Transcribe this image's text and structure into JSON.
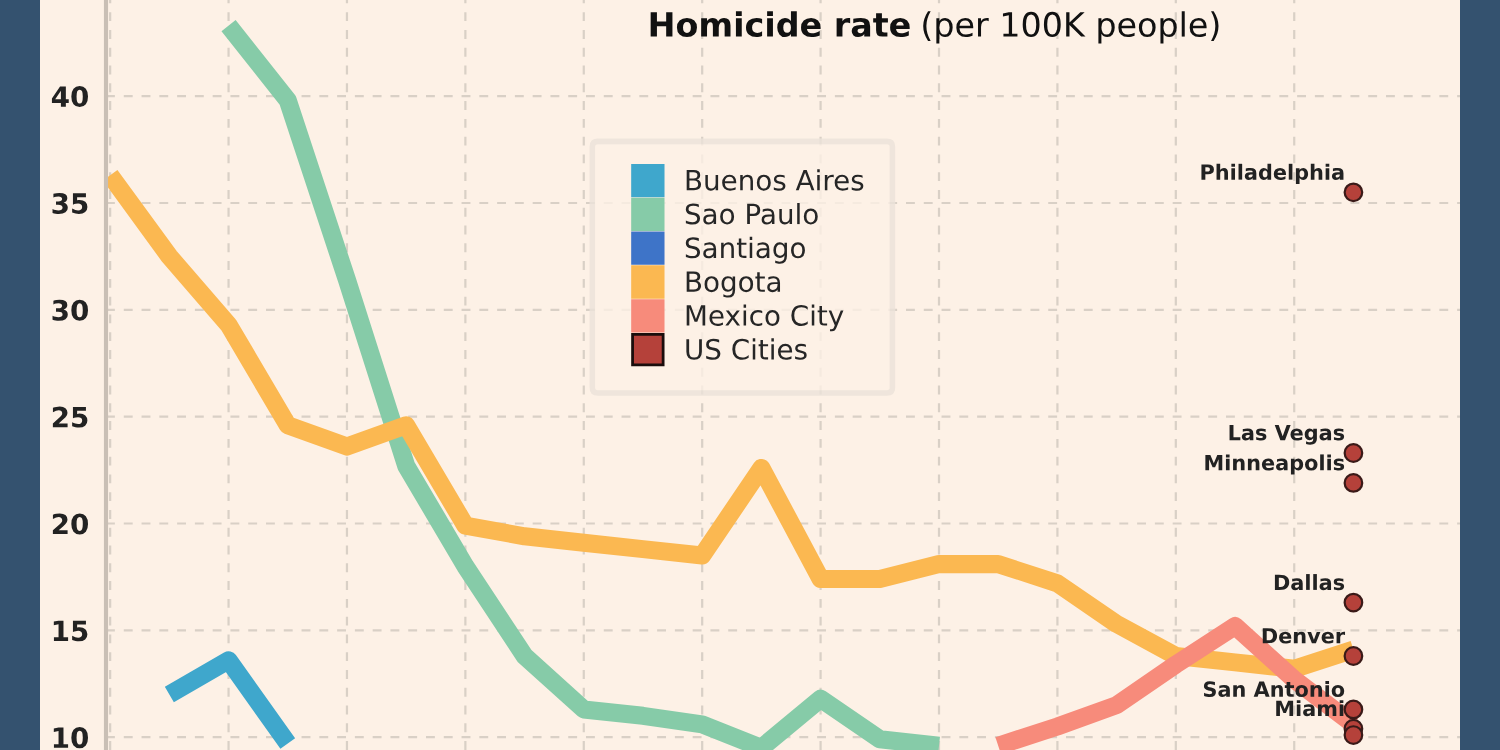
{
  "chart_data": {
    "type": "line",
    "title": "Homicide rate",
    "subtitle": "(per 100K people)",
    "categories": [
      null,
      null,
      null,
      null,
      null,
      null,
      null,
      null,
      null,
      null,
      null,
      null,
      null,
      null,
      null,
      null,
      null,
      null,
      null,
      null,
      null,
      null
    ],
    "series": [
      {
        "name": "Buenos Aires",
        "color": "#3fa7cc",
        "values": [
          null,
          12.0,
          13.6,
          9.7,
          null,
          null,
          null,
          null,
          null,
          null,
          null,
          null,
          null,
          null,
          null,
          null,
          null,
          null,
          null,
          null,
          null,
          null
        ]
      },
      {
        "name": "Sao Paulo",
        "color": "#86cba8",
        "values": [
          null,
          null,
          43.3,
          39.8,
          31.4,
          22.7,
          18.0,
          13.8,
          11.3,
          11.0,
          10.6,
          9.5,
          11.8,
          9.9,
          9.6,
          null,
          null,
          null,
          null,
          null,
          null,
          null
        ]
      },
      {
        "name": "Santiago",
        "color": "#3e74c8",
        "values": [
          null,
          null,
          null,
          null,
          null,
          null,
          null,
          null,
          null,
          null,
          null,
          null,
          null,
          null,
          null,
          null,
          null,
          null,
          null,
          null,
          null,
          null
        ]
      },
      {
        "name": "Bogota",
        "color": "#fbb851",
        "values": [
          36.3,
          32.5,
          29.3,
          24.6,
          23.6,
          24.6,
          19.9,
          19.4,
          19.1,
          18.8,
          18.5,
          22.6,
          17.4,
          17.4,
          18.1,
          18.1,
          17.2,
          15.3,
          13.8,
          13.5,
          13.2,
          14.1
        ]
      },
      {
        "name": "Mexico City",
        "color": "#f78b7b",
        "values": [
          null,
          null,
          null,
          null,
          null,
          null,
          null,
          null,
          null,
          null,
          null,
          null,
          null,
          null,
          null,
          9.6,
          10.5,
          11.5,
          13.4,
          15.2,
          12.7,
          10.6
        ]
      },
      {
        "name": "US Cities",
        "type": "scatter",
        "marker": "circle",
        "color": "#b5413a",
        "values": [
          null,
          null,
          null,
          null,
          null,
          null,
          null,
          null,
          null,
          null,
          null,
          null,
          null,
          null,
          null,
          null,
          null,
          null,
          null,
          null,
          null,
          35.5
        ]
      },
      {
        "type": "scatter",
        "color": "#b5413a",
        "marker": "circle",
        "values": [
          null,
          null,
          null,
          null,
          null,
          null,
          null,
          null,
          null,
          null,
          null,
          null,
          null,
          null,
          null,
          null,
          null,
          null,
          null,
          null,
          null,
          23.3
        ]
      },
      {
        "type": "scatter",
        "color": "#b5413a",
        "marker": "circle",
        "values": [
          null,
          null,
          null,
          null,
          null,
          null,
          null,
          null,
          null,
          null,
          null,
          null,
          null,
          null,
          null,
          null,
          null,
          null,
          null,
          null,
          null,
          21.9
        ]
      },
      {
        "type": "scatter",
        "color": "#b5413a",
        "marker": "circle",
        "values": [
          null,
          null,
          null,
          null,
          null,
          null,
          null,
          null,
          null,
          null,
          null,
          null,
          null,
          null,
          null,
          null,
          null,
          null,
          null,
          null,
          null,
          16.3
        ]
      },
      {
        "type": "scatter",
        "color": "#b5413a",
        "marker": "circle",
        "values": [
          null,
          null,
          null,
          null,
          null,
          null,
          null,
          null,
          null,
          null,
          null,
          null,
          null,
          null,
          null,
          null,
          null,
          null,
          null,
          null,
          null,
          13.8
        ]
      },
      {
        "type": "scatter",
        "color": "#b5413a",
        "marker": "circle",
        "values": [
          null,
          null,
          null,
          null,
          null,
          null,
          null,
          null,
          null,
          null,
          null,
          null,
          null,
          null,
          null,
          null,
          null,
          null,
          null,
          null,
          null,
          11.3
        ]
      },
      {
        "type": "scatter",
        "color": "#b5413a",
        "marker": "circle",
        "values": [
          null,
          null,
          null,
          null,
          null,
          null,
          null,
          null,
          null,
          null,
          null,
          null,
          null,
          null,
          null,
          null,
          null,
          null,
          null,
          null,
          null,
          10.4
        ]
      },
      {
        "type": "scatter",
        "color": "#b5413a",
        "marker": "circle",
        "values": [
          null,
          null,
          null,
          null,
          null,
          null,
          null,
          null,
          null,
          null,
          null,
          null,
          null,
          null,
          null,
          null,
          null,
          null,
          null,
          null,
          null,
          10.1
        ]
      }
    ],
    "annotations": [
      "Philadelphia",
      "Las Vegas",
      "Minneapolis",
      "Dallas",
      "Denver",
      "San Antonio",
      "Miami"
    ],
    "ylim": [
      9.4,
      44.5
    ],
    "yticks": [
      10,
      15,
      20,
      25,
      30,
      35,
      40
    ],
    "grid": true,
    "legend": "top",
    "tick_labels": "y",
    "marker": "none",
    "line_style": "solid"
  }
}
